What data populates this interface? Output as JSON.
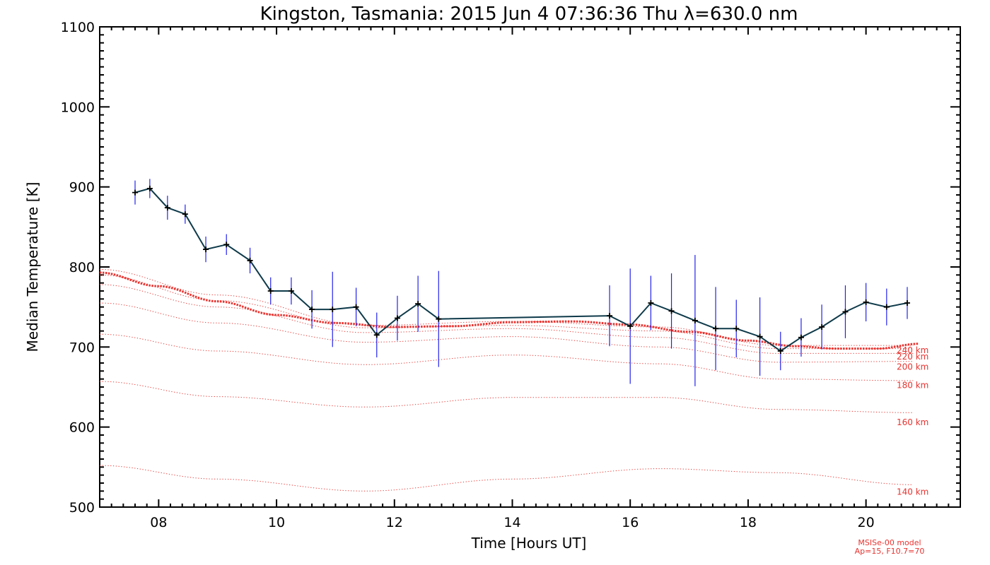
{
  "chart_data": {
    "type": "line",
    "title": "Kingston, Tasmania: 2015 Jun  4 07:36:36 Thu λ=630.0 nm",
    "xlabel": "Time [Hours UT]",
    "ylabel": "Median Temperature [K]",
    "xlim": [
      7.0,
      21.6
    ],
    "ylim": [
      500,
      1100
    ],
    "x_ticks": [
      8,
      10,
      12,
      14,
      16,
      18,
      20
    ],
    "x_tick_labels": [
      "08",
      "10",
      "12",
      "14",
      "16",
      "18",
      "20"
    ],
    "y_ticks": [
      500,
      600,
      700,
      800,
      900,
      1000,
      1100
    ],
    "y_tick_labels": [
      "500",
      "600",
      "700",
      "800",
      "900",
      "1000",
      "1100"
    ],
    "colors": {
      "measured": "#0e3a4a",
      "error_bar": "#2222ee",
      "model": "#e8332f"
    },
    "measured": {
      "x": [
        7.6,
        7.85,
        8.15,
        8.45,
        8.8,
        9.15,
        9.55,
        9.9,
        10.25,
        10.6,
        10.95,
        11.35,
        11.7,
        12.05,
        12.4,
        12.75,
        15.65,
        16.0,
        16.35,
        16.7,
        17.1,
        17.45,
        17.8,
        18.2,
        18.55,
        18.9,
        19.25,
        19.65,
        20.0,
        20.35,
        20.7
      ],
      "y": [
        893,
        898,
        874,
        866,
        822,
        828,
        808,
        770,
        770,
        747,
        747,
        750,
        715,
        736,
        754,
        735,
        739,
        726,
        755,
        745,
        733,
        723,
        723,
        713,
        695,
        712,
        725,
        744,
        756,
        750,
        755
      ],
      "err": [
        15,
        12,
        15,
        12,
        16,
        13,
        16,
        17,
        17,
        24,
        47,
        24,
        28,
        28,
        35,
        60,
        38,
        72,
        34,
        47,
        82,
        52,
        36,
        49,
        24,
        24,
        28,
        33,
        24,
        23,
        20
      ]
    },
    "model_series": [
      {
        "name": "140 km",
        "label_value": 519,
        "x": [
          7,
          9,
          11.5,
          14,
          16.5,
          18.5,
          20.8
        ],
        "y": [
          552,
          535,
          520,
          535,
          548,
          543,
          528
        ]
      },
      {
        "name": "160 km",
        "label_value": 606,
        "x": [
          7,
          9,
          11.5,
          14,
          16.5,
          18.5,
          20.8
        ],
        "y": [
          657,
          638,
          625,
          637,
          637,
          622,
          618
        ]
      },
      {
        "name": "180 km",
        "label_value": 652,
        "x": [
          7,
          9,
          11.5,
          14,
          16.5,
          18.5,
          20.8
        ],
        "y": [
          716,
          695,
          678,
          690,
          679,
          660,
          658
        ]
      },
      {
        "name": "200 km",
        "label_value": 675,
        "x": [
          7,
          9,
          11.5,
          14,
          16.5,
          18.5,
          20.8
        ],
        "y": [
          755,
          730,
          706,
          713,
          700,
          681,
          682
        ]
      },
      {
        "name": "220 km",
        "label_value": 688,
        "x": [
          7,
          9,
          11.5,
          14,
          16.5,
          18.5,
          20.8
        ],
        "y": [
          778,
          750,
          718,
          723,
          712,
          692,
          692
        ]
      },
      {
        "name": "240 km",
        "label_value": 696,
        "x": [
          7,
          9,
          11.5,
          14,
          16.5,
          18.5,
          20.8
        ],
        "y": [
          790,
          758,
          724,
          727,
          720,
          698,
          698
        ]
      },
      {
        "name": "",
        "label_value": null,
        "x": [
          7,
          9,
          11.5,
          14,
          16.5,
          18.5,
          20.8
        ],
        "y": [
          797,
          765,
          727,
          732,
          725,
          702,
          702
        ]
      }
    ],
    "bold_model": {
      "x": [
        7.0,
        8.0,
        9.0,
        10.0,
        11.0,
        12.0,
        13.0,
        14.0,
        15.0,
        16.0,
        17.0,
        18.0,
        18.8,
        19.5,
        20.2,
        20.9
      ],
      "y": [
        793,
        776,
        757,
        740,
        730,
        725,
        726,
        731,
        732,
        728,
        719,
        708,
        701,
        698,
        698,
        704
      ]
    },
    "annotations": [
      "MSISe-00 model",
      "Ap=15, F10.7=70"
    ]
  }
}
